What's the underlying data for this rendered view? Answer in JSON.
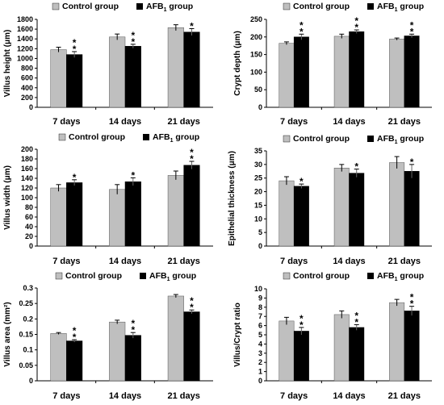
{
  "legend": {
    "control": "Control group",
    "afb_prefix": "AFB",
    "afb_sub": "1",
    "afb_suffix": " group"
  },
  "colors": {
    "control": "#bfbfbf",
    "afb": "#000000",
    "axis": "#000000"
  },
  "chart_data": [
    {
      "type": "bar",
      "ylabel": "Villus height (μm)",
      "ylim": [
        0,
        1800
      ],
      "yticks": [
        0,
        200,
        400,
        600,
        800,
        1000,
        1200,
        1400,
        1600,
        1800
      ],
      "categories": [
        "7 days",
        "14 days",
        "21 days"
      ],
      "series": [
        {
          "name": "Control group",
          "values": [
            1180,
            1440,
            1630
          ],
          "errors": [
            50,
            60,
            60
          ]
        },
        {
          "name": "AFB1 group",
          "values": [
            1080,
            1250,
            1540
          ],
          "errors": [
            60,
            40,
            70
          ]
        }
      ],
      "annotations": [
        {
          "category": "7 days",
          "series": "AFB1 group",
          "text": "**"
        },
        {
          "category": "14 days",
          "series": "AFB1 group",
          "text": "**"
        },
        {
          "category": "21 days",
          "series": "AFB1 group",
          "text": "*"
        }
      ]
    },
    {
      "type": "bar",
      "ylabel": "Crypt depth (μm)",
      "ylim": [
        0,
        250
      ],
      "yticks": [
        0,
        50,
        100,
        150,
        200,
        250
      ],
      "categories": [
        "7 days",
        "14 days",
        "21 days"
      ],
      "series": [
        {
          "name": "Control group",
          "values": [
            182,
            202,
            194
          ],
          "errors": [
            4,
            6,
            3
          ]
        },
        {
          "name": "AFB1 group",
          "values": [
            200,
            215,
            203
          ],
          "errors": [
            8,
            5,
            5
          ]
        }
      ],
      "annotations": [
        {
          "category": "7 days",
          "series": "AFB1 group",
          "text": "**"
        },
        {
          "category": "14 days",
          "series": "AFB1 group",
          "text": "**"
        },
        {
          "category": "21 days",
          "series": "AFB1 group",
          "text": "**"
        }
      ]
    },
    {
      "type": "bar",
      "ylabel": "Villus width (μm)",
      "ylim": [
        0,
        200
      ],
      "yticks": [
        0,
        20,
        40,
        60,
        80,
        100,
        120,
        140,
        160,
        180,
        200
      ],
      "categories": [
        "7 days",
        "14 days",
        "21 days"
      ],
      "series": [
        {
          "name": "Control group",
          "values": [
            120,
            117,
            146
          ],
          "errors": [
            7,
            10,
            9
          ]
        },
        {
          "name": "AFB1 group",
          "values": [
            131,
            133,
            167
          ],
          "errors": [
            6,
            8,
            8
          ]
        }
      ],
      "annotations": [
        {
          "category": "7 days",
          "series": "AFB1 group",
          "text": "*"
        },
        {
          "category": "14 days",
          "series": "AFB1 group",
          "text": "*"
        },
        {
          "category": "21 days",
          "series": "AFB1 group",
          "text": "**"
        }
      ]
    },
    {
      "type": "bar",
      "ylabel": "Epithelial thickness (μm)",
      "ylim": [
        0,
        35
      ],
      "yticks": [
        0,
        5,
        10,
        15,
        20,
        25,
        30,
        35
      ],
      "categories": [
        "7 days",
        "14 days",
        "21 days"
      ],
      "series": [
        {
          "name": "Control group",
          "values": [
            24,
            28.7,
            30.7
          ],
          "errors": [
            1.5,
            1.3,
            2.2
          ]
        },
        {
          "name": "AFB1 group",
          "values": [
            22,
            26.8,
            27.5
          ],
          "errors": [
            0.8,
            1.5,
            2.5
          ]
        }
      ],
      "annotations": [
        {
          "category": "7 days",
          "series": "AFB1 group",
          "text": "*"
        },
        {
          "category": "14 days",
          "series": "AFB1 group",
          "text": "*"
        },
        {
          "category": "21 days",
          "series": "AFB1 group",
          "text": "*"
        }
      ]
    },
    {
      "type": "bar",
      "ylabel": "Villus area (mm²)",
      "ylim": [
        0,
        0.3
      ],
      "yticks": [
        0,
        0.05,
        0.1,
        0.15,
        0.2,
        0.25,
        0.3
      ],
      "categories": [
        "7 days",
        "14 days",
        "21 days"
      ],
      "series": [
        {
          "name": "Control group",
          "values": [
            0.153,
            0.19,
            0.274
          ],
          "errors": [
            0.003,
            0.006,
            0.005
          ]
        },
        {
          "name": "AFB1 group",
          "values": [
            0.129,
            0.147,
            0.223
          ],
          "errors": [
            0.004,
            0.009,
            0.006
          ]
        }
      ],
      "annotations": [
        {
          "category": "7 days",
          "series": "AFB1 group",
          "text": "**"
        },
        {
          "category": "14 days",
          "series": "AFB1 group",
          "text": "**"
        },
        {
          "category": "21 days",
          "series": "AFB1 group",
          "text": "**"
        }
      ]
    },
    {
      "type": "bar",
      "ylabel": "Villus/Crypt ratio",
      "ylim": [
        0,
        10
      ],
      "yticks": [
        0,
        1,
        2,
        3,
        4,
        5,
        6,
        7,
        8,
        9,
        10
      ],
      "categories": [
        "7 days",
        "14 days",
        "21 days"
      ],
      "series": [
        {
          "name": "Control group",
          "values": [
            6.5,
            7.2,
            8.5
          ],
          "errors": [
            0.4,
            0.4,
            0.35
          ]
        },
        {
          "name": "AFB1 group",
          "values": [
            5.4,
            5.8,
            7.6
          ],
          "errors": [
            0.4,
            0.3,
            0.5
          ]
        }
      ],
      "annotations": [
        {
          "category": "7 days",
          "series": "AFB1 group",
          "text": "**"
        },
        {
          "category": "14 days",
          "series": "AFB1 group",
          "text": "**"
        },
        {
          "category": "21 days",
          "series": "AFB1 group",
          "text": "**"
        }
      ]
    }
  ]
}
